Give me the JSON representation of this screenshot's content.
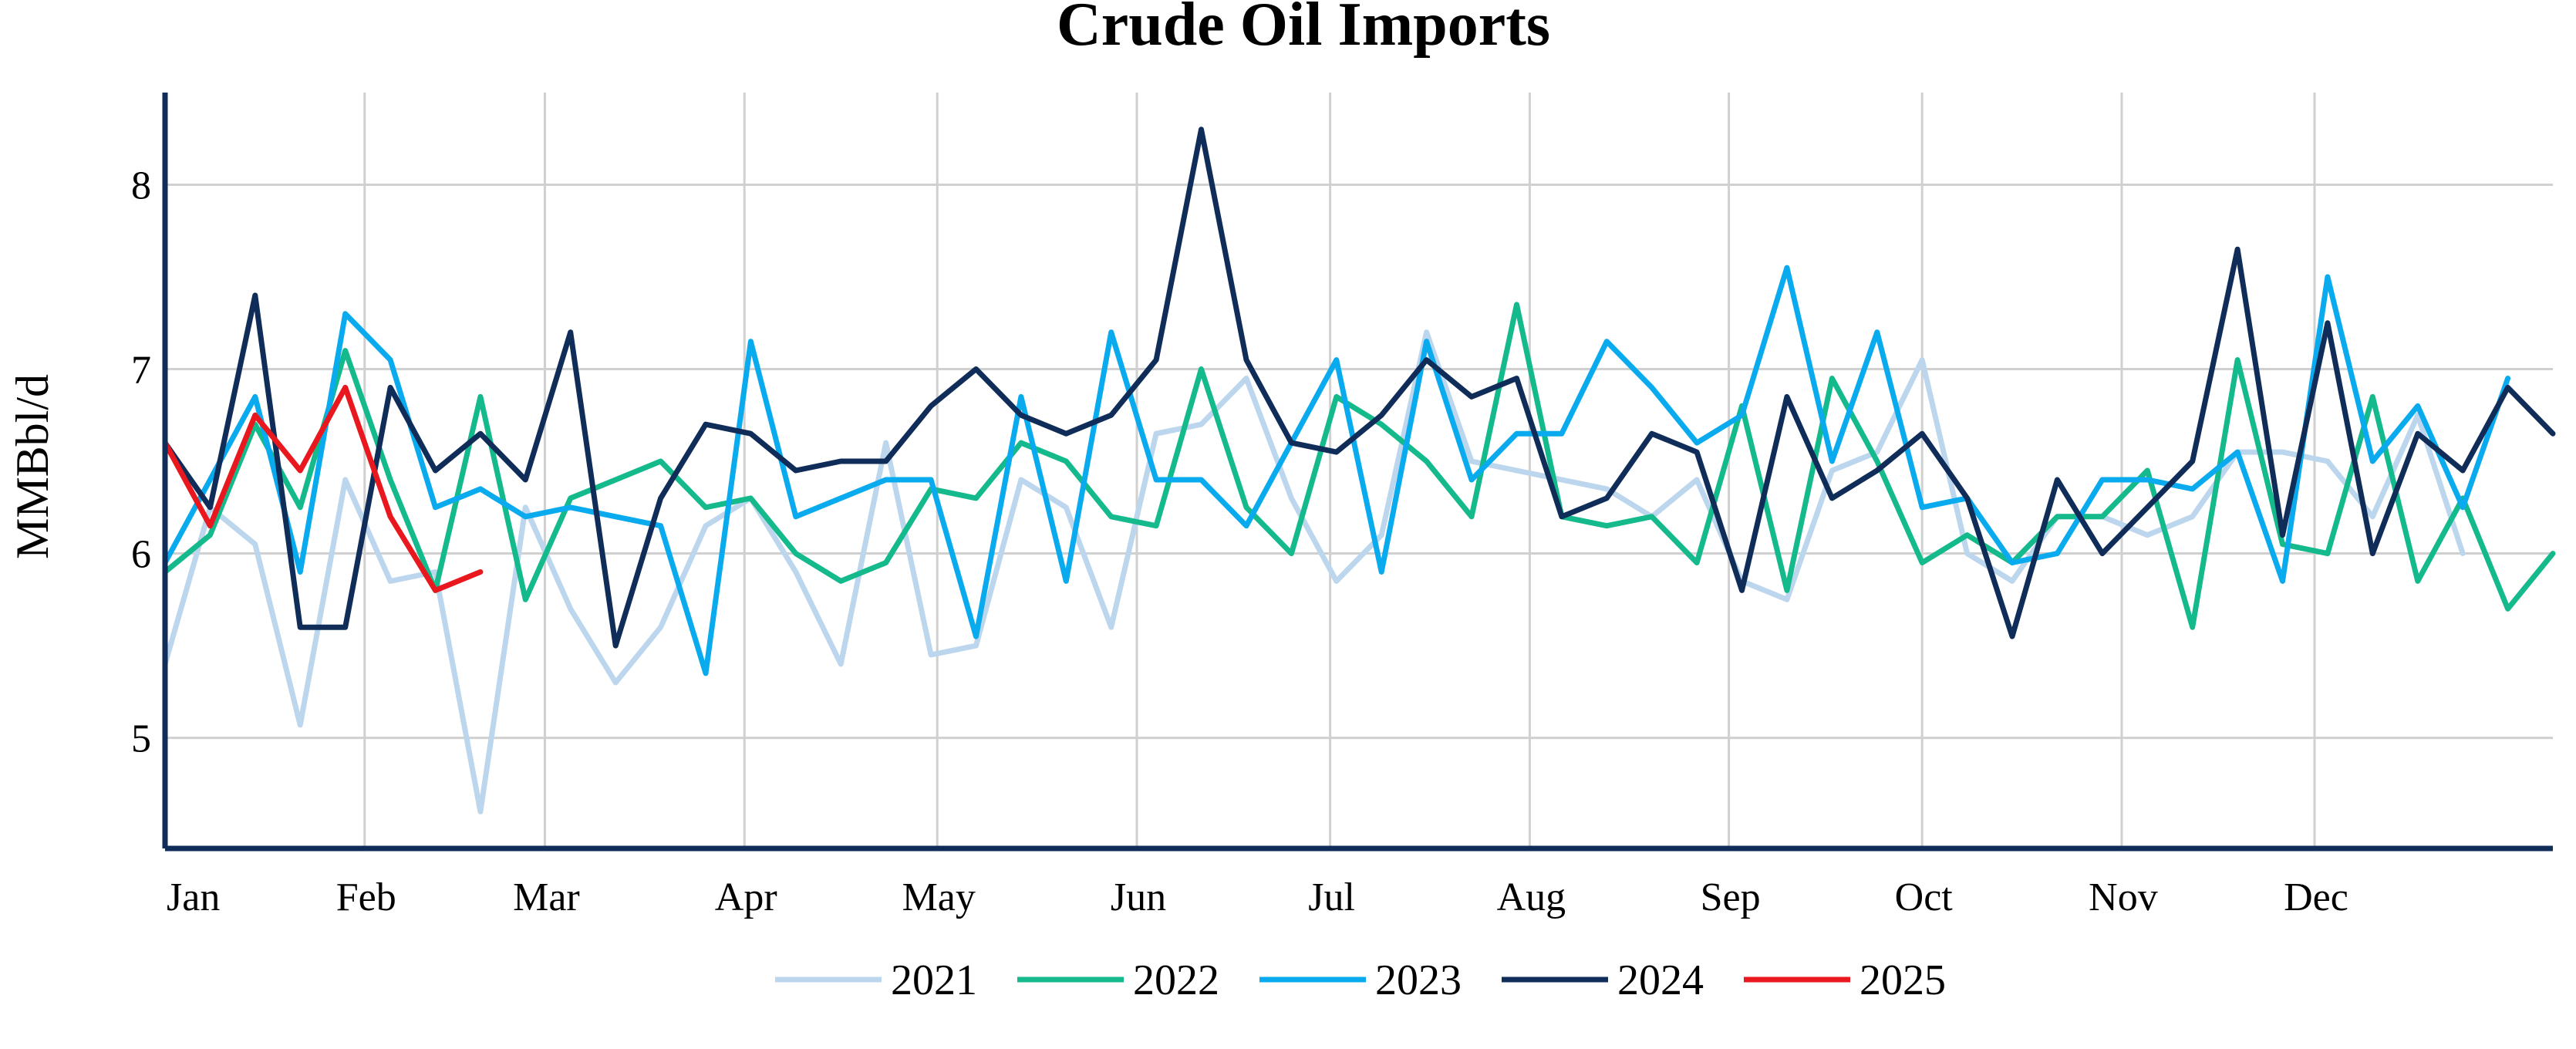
{
  "chart_data": {
    "type": "line",
    "title": "Crude Oil Imports",
    "xlabel": "",
    "ylabel": "MMBbl/d",
    "ylim": [
      4.4,
      8.5
    ],
    "y_ticks": [
      5,
      6,
      7,
      8
    ],
    "x_tick_labels": [
      "Jan",
      "Feb",
      "Mar",
      "Apr",
      "May",
      "Jun",
      "Jul",
      "Aug",
      "Sep",
      "Oct",
      "Nov",
      "Dec"
    ],
    "x_unit": "week of year",
    "grid": true,
    "legend_position": "bottom",
    "series": [
      {
        "name": "2021",
        "color": "#bcd6ee",
        "values": [
          5.4,
          6.25,
          6.05,
          5.07,
          6.4,
          5.85,
          5.9,
          4.6,
          6.25,
          5.7,
          5.3,
          5.6,
          6.15,
          6.3,
          5.9,
          5.4,
          6.6,
          5.45,
          5.5,
          6.4,
          6.25,
          5.6,
          6.65,
          6.7,
          6.95,
          6.3,
          5.85,
          6.1,
          7.2,
          6.5,
          6.45,
          6.4,
          6.35,
          6.2,
          6.4,
          5.85,
          5.75,
          6.45,
          6.55,
          7.05,
          6.0,
          5.85,
          6.2,
          6.2,
          6.1,
          6.2,
          6.55,
          6.55,
          6.5,
          6.2,
          6.75,
          6.0
        ]
      },
      {
        "name": "2022",
        "color": "#14b98c",
        "values": [
          5.9,
          6.1,
          6.7,
          6.25,
          7.1,
          6.4,
          5.8,
          6.85,
          5.75,
          6.3,
          6.4,
          6.5,
          6.25,
          6.3,
          6.0,
          5.85,
          5.95,
          6.35,
          6.3,
          6.6,
          6.5,
          6.2,
          6.15,
          7.0,
          6.25,
          6.0,
          6.85,
          6.7,
          6.5,
          6.2,
          7.35,
          6.2,
          6.15,
          6.2,
          5.95,
          6.8,
          5.8,
          6.95,
          6.5,
          5.95,
          6.1,
          5.95,
          6.2,
          6.2,
          6.45,
          5.6,
          7.05,
          6.05,
          6.0,
          6.85,
          5.85,
          6.3,
          5.7,
          6.0
        ]
      },
      {
        "name": "2023",
        "color": "#0aabee",
        "values": [
          5.95,
          6.4,
          6.85,
          5.9,
          7.3,
          7.05,
          6.25,
          6.35,
          6.2,
          6.25,
          6.2,
          6.15,
          5.35,
          7.15,
          6.2,
          6.3,
          6.4,
          6.4,
          5.55,
          6.85,
          5.85,
          7.2,
          6.4,
          6.4,
          6.15,
          6.6,
          7.05,
          5.9,
          7.15,
          6.4,
          6.65,
          6.65,
          7.15,
          6.9,
          6.6,
          6.75,
          7.55,
          6.5,
          7.2,
          6.25,
          6.3,
          5.95,
          6.0,
          6.4,
          6.4,
          6.35,
          6.55,
          5.85,
          7.5,
          6.5,
          6.8,
          6.25,
          6.95
        ]
      },
      {
        "name": "2024",
        "color": "#0f2d58",
        "values": [
          6.6,
          6.25,
          7.4,
          5.6,
          5.6,
          6.9,
          6.45,
          6.65,
          6.4,
          7.2,
          5.5,
          6.3,
          6.7,
          6.65,
          6.45,
          6.5,
          6.5,
          6.8,
          7.0,
          6.75,
          6.65,
          6.75,
          7.05,
          8.3,
          7.05,
          6.6,
          6.55,
          6.75,
          7.05,
          6.85,
          6.95,
          6.2,
          6.3,
          6.65,
          6.55,
          5.8,
          6.85,
          6.3,
          6.45,
          6.65,
          6.3,
          5.55,
          6.4,
          6.0,
          6.25,
          6.5,
          7.65,
          6.1,
          7.25,
          6.0,
          6.65,
          6.45,
          6.9,
          6.65
        ]
      },
      {
        "name": "2025",
        "color": "#e8181e",
        "values": [
          6.6,
          6.15,
          6.75,
          6.45,
          6.9,
          6.2,
          5.8,
          5.9
        ]
      }
    ]
  }
}
